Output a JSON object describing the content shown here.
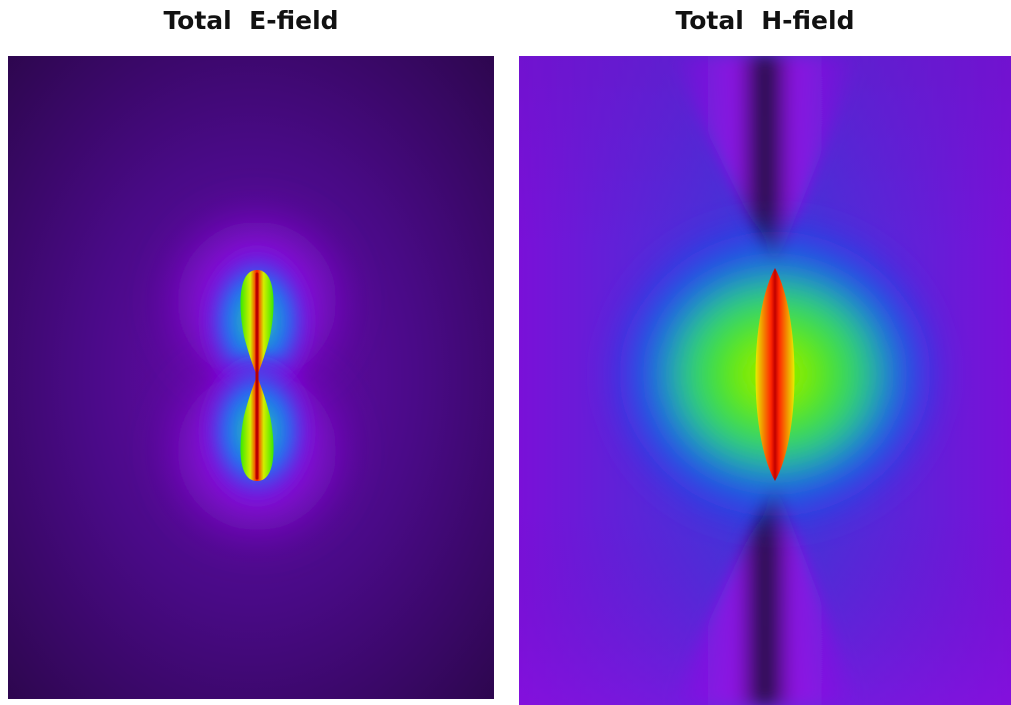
{
  "panels": [
    {
      "title": "Total  E-field",
      "colormap": [
        "#2e0750",
        "#7a00c8",
        "#9f10f0",
        "#1f5cf5",
        "#22c9a5",
        "#39e800",
        "#c8f000",
        "#ff2800",
        "#b00000"
      ],
      "background_color": "#2e0750"
    },
    {
      "title": "Total  H-field",
      "colormap": [
        "#1c0640",
        "#6a14c8",
        "#9a0ee6",
        "#3a3ad9",
        "#1255f2",
        "#2ad07a",
        "#49e800",
        "#d4f000",
        "#ff2500",
        "#b40000"
      ],
      "background_color": "#3a3ad9"
    }
  ]
}
